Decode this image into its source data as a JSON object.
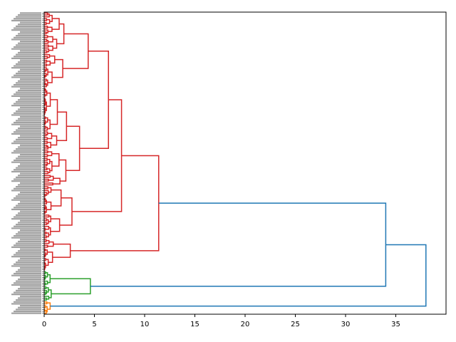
{
  "chart_data": {
    "type": "dendrogram",
    "orientation": "horizontal",
    "title": "",
    "xlabel": "",
    "ylabel": "",
    "xlim": [
      0,
      40
    ],
    "x_ticks": [
      0,
      5,
      10,
      15,
      20,
      25,
      30,
      35
    ],
    "x_tick_labels": [
      "0",
      "5",
      "10",
      "15",
      "20",
      "25",
      "30",
      "35"
    ],
    "leaf_count": 160,
    "colors": {
      "red_cluster": "#d62728",
      "green_cluster": "#2ca02c",
      "orange_cluster": "#ff7f0e",
      "above_threshold": "#1f77b4"
    },
    "top_merges": [
      {
        "height": 38.0,
        "joins": [
          "merge_34.0",
          "orange_cluster"
        ],
        "color": "above_threshold"
      },
      {
        "height": 34.0,
        "joins": [
          "red_cluster",
          "green_cluster"
        ],
        "color": "above_threshold"
      },
      {
        "height": 11.4,
        "joins": [
          "merge_7.7",
          "red_bottom_group"
        ],
        "color": "red_cluster"
      },
      {
        "height": 7.7,
        "joins": [
          "merge_6.4",
          "red_lower_group"
        ],
        "color": "red_cluster"
      },
      {
        "height": 6.4,
        "joins": [
          "red_top_group",
          "red_middle_group"
        ],
        "color": "red_cluster"
      },
      {
        "height": 4.8,
        "joins": [
          "green_upper",
          "green_lower"
        ],
        "color": "green_cluster"
      }
    ],
    "grid": false
  }
}
